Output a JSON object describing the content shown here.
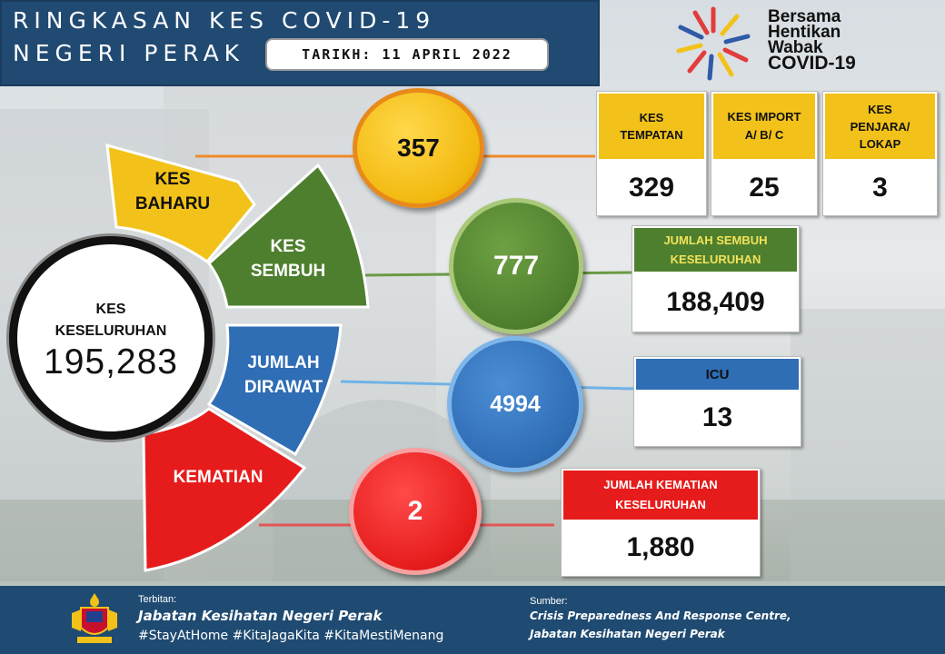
{
  "header": {
    "line1": "RINGKASAN KES COVID-19",
    "line2": "NEGERI PERAK",
    "date_label": "TARIKH: 11 APRIL 2022"
  },
  "logo": {
    "line1": "Bersama",
    "line2": "Hentikan",
    "line3": "Wabak",
    "line4": "COVID-19"
  },
  "total": {
    "label_line1": "KES",
    "label_line2": "KESELURUHAN",
    "value": "195,283"
  },
  "segments": {
    "baharu": {
      "line1": "KES",
      "line2": "BAHARU",
      "color": "#f2c21a"
    },
    "sembuh": {
      "line1": "KES",
      "line2": "SEMBUH",
      "color": "#4e7f2e"
    },
    "dirawat": {
      "line1": "JUMLAH",
      "line2": "DIRAWAT",
      "color": "#2f6db5"
    },
    "kematian": {
      "line1": "KEMATIAN",
      "color": "#e61c1c"
    }
  },
  "circles": {
    "baharu": "357",
    "sembuh": "777",
    "dirawat": "4994",
    "kematian": "2"
  },
  "breakdown": {
    "tempatan": {
      "line1": "KES",
      "line2": "TEMPATAN",
      "value": "329"
    },
    "import": {
      "line1": "KES IMPORT",
      "line2": "A/ B/ C",
      "value": "25"
    },
    "penjara": {
      "line1": "KES",
      "line2": "PENJARA/",
      "line3": "LOKAP",
      "value": "3"
    }
  },
  "sembuh_total": {
    "line1": "JUMLAH SEMBUH",
    "line2": "KESELURUHAN",
    "value": "188,409"
  },
  "icu": {
    "label": "ICU",
    "value": "13"
  },
  "kematian_total": {
    "line1": "JUMLAH KEMATIAN",
    "line2": "KESELURUHAN",
    "value": "1,880"
  },
  "footer": {
    "terbitan_label": "Terbitan:",
    "publisher": "Jabatan Kesihatan Negeri Perak",
    "hashtags": "#StayAtHome #KitaJagaKita #KitaMestiMenang",
    "sumber_label": "Sumber:",
    "source_line1": "Crisis Preparedness And Response Centre,",
    "source_line2": "Jabatan Kesihatan Negeri Perak"
  }
}
